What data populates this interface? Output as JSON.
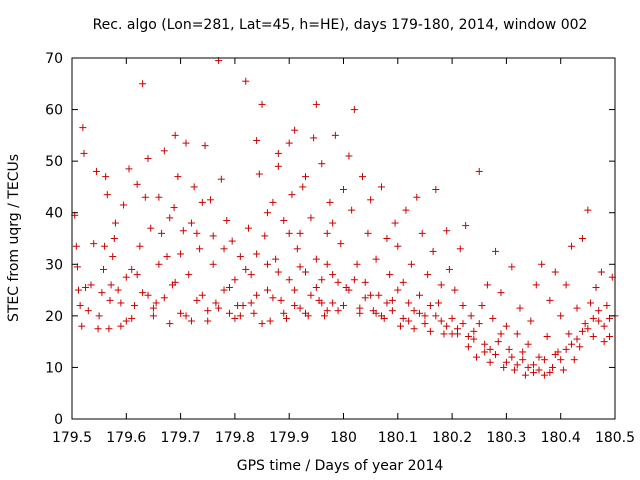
{
  "chart_data": {
    "type": "scatter",
    "title": "Rec. algo (Lon=281, Lat=45, h=HE), days 179-180, 2014, window 002",
    "xlabel": "GPS time / Days of year 2014",
    "ylabel": "STEC from uqrg / TECUs",
    "xlim": [
      179.5,
      180.5
    ],
    "ylim": [
      0,
      70
    ],
    "xticks": [
      179.5,
      179.6,
      179.7,
      179.8,
      179.9,
      180,
      180.1,
      180.2,
      180.3,
      180.4,
      180.5
    ],
    "xtick_labels": [
      "179.5",
      "179.6",
      "179.7",
      "179.8",
      "179.9",
      "180",
      "180.1",
      "180.2",
      "180.3",
      "180.4",
      "180.5"
    ],
    "yticks": [
      0,
      10,
      20,
      30,
      40,
      50,
      60,
      70
    ],
    "ytick_labels": [
      "0",
      "10",
      "20",
      "30",
      "40",
      "50",
      "60",
      "70"
    ],
    "marker": "+",
    "marker_color": "#cc0000",
    "grid": false,
    "points": [
      [
        179.505,
        39.5
      ],
      [
        179.508,
        33.5
      ],
      [
        179.51,
        29.5
      ],
      [
        179.512,
        25.0
      ],
      [
        179.515,
        22.0
      ],
      [
        179.518,
        18.0
      ],
      [
        179.52,
        56.5
      ],
      [
        179.522,
        51.5
      ],
      [
        179.525,
        25.5
      ],
      [
        179.53,
        21.0
      ],
      [
        179.535,
        26.0
      ],
      [
        179.54,
        34.0
      ],
      [
        179.545,
        48.0
      ],
      [
        179.548,
        17.5
      ],
      [
        179.555,
        24.5
      ],
      [
        179.558,
        29.0
      ],
      [
        179.56,
        33.5
      ],
      [
        179.562,
        47.0
      ],
      [
        179.565,
        43.5
      ],
      [
        179.568,
        17.5
      ],
      [
        179.572,
        26.0
      ],
      [
        179.575,
        31.5
      ],
      [
        179.578,
        35.0
      ],
      [
        179.58,
        38.0
      ],
      [
        179.585,
        25.0
      ],
      [
        179.59,
        18.0
      ],
      [
        179.595,
        41.5
      ],
      [
        179.6,
        19.0
      ],
      [
        179.605,
        48.5
      ],
      [
        179.61,
        29.0
      ],
      [
        179.615,
        22.0
      ],
      [
        179.62,
        28.0
      ],
      [
        179.625,
        33.5
      ],
      [
        179.63,
        65.0
      ],
      [
        179.635,
        43.0
      ],
      [
        179.64,
        24.0
      ],
      [
        179.645,
        37.0
      ],
      [
        179.65,
        20.0
      ],
      [
        179.655,
        22.5
      ],
      [
        179.66,
        30.0
      ],
      [
        179.665,
        36.0
      ],
      [
        179.67,
        52.0
      ],
      [
        179.675,
        31.5
      ],
      [
        179.68,
        18.5
      ],
      [
        179.685,
        26.0
      ],
      [
        179.688,
        41.0
      ],
      [
        179.69,
        55.0
      ],
      [
        179.695,
        47.0
      ],
      [
        179.7,
        20.5
      ],
      [
        179.705,
        36.5
      ],
      [
        179.71,
        53.5
      ],
      [
        179.715,
        28.0
      ],
      [
        179.72,
        19.0
      ],
      [
        179.725,
        45.0
      ],
      [
        179.73,
        36.0
      ],
      [
        179.735,
        33.0
      ],
      [
        179.74,
        24.0
      ],
      [
        179.745,
        53.0
      ],
      [
        179.75,
        21.0
      ],
      [
        179.755,
        42.5
      ],
      [
        179.76,
        30.0
      ],
      [
        179.765,
        22.5
      ],
      [
        179.77,
        69.5
      ],
      [
        179.775,
        46.5
      ],
      [
        179.78,
        25.0
      ],
      [
        179.785,
        38.5
      ],
      [
        179.79,
        20.5
      ],
      [
        179.795,
        34.5
      ],
      [
        179.8,
        27.0
      ],
      [
        179.805,
        22.0
      ],
      [
        179.81,
        31.5
      ],
      [
        179.815,
        22.0
      ],
      [
        179.82,
        65.5
      ],
      [
        179.825,
        37.0
      ],
      [
        179.83,
        28.0
      ],
      [
        179.835,
        20.5
      ],
      [
        179.84,
        54.0
      ],
      [
        179.845,
        47.5
      ],
      [
        179.85,
        61.0
      ],
      [
        179.855,
        35.5
      ],
      [
        179.86,
        25.0
      ],
      [
        179.865,
        19.0
      ],
      [
        179.87,
        42.0
      ],
      [
        179.875,
        31.0
      ],
      [
        179.88,
        51.5
      ],
      [
        179.885,
        23.0
      ],
      [
        179.89,
        38.5
      ],
      [
        179.895,
        19.5
      ],
      [
        179.9,
        27.0
      ],
      [
        179.905,
        43.5
      ],
      [
        179.91,
        56.0
      ],
      [
        179.915,
        33.0
      ],
      [
        179.92,
        21.5
      ],
      [
        179.925,
        45.0
      ],
      [
        179.93,
        28.5
      ],
      [
        179.935,
        20.0
      ],
      [
        179.94,
        39.0
      ],
      [
        179.945,
        54.5
      ],
      [
        179.95,
        31.0
      ],
      [
        179.955,
        23.0
      ],
      [
        179.96,
        49.5
      ],
      [
        179.965,
        20.0
      ],
      [
        179.97,
        36.0
      ],
      [
        179.975,
        42.0
      ],
      [
        179.98,
        28.0
      ],
      [
        179.985,
        55.0
      ],
      [
        179.99,
        21.0
      ],
      [
        179.995,
        34.0
      ],
      [
        180.0,
        44.5
      ],
      [
        179.95,
        61.0
      ],
      [
        179.9,
        53.5
      ],
      [
        179.88,
        49.0
      ],
      [
        179.86,
        30.0
      ],
      [
        179.84,
        24.0
      ],
      [
        179.98,
        38.0
      ],
      [
        179.97,
        30.0
      ],
      [
        179.96,
        22.5
      ],
      [
        179.93,
        47.0
      ],
      [
        179.92,
        36.0
      ],
      [
        179.91,
        25.0
      ],
      [
        180.005,
        25.5
      ],
      [
        180.01,
        51.0
      ],
      [
        180.015,
        40.5
      ],
      [
        180.02,
        60.0
      ],
      [
        180.025,
        30.0
      ],
      [
        180.03,
        20.5
      ],
      [
        180.035,
        47.0
      ],
      [
        180.04,
        26.5
      ],
      [
        180.045,
        36.0
      ],
      [
        180.05,
        42.5
      ],
      [
        180.055,
        21.0
      ],
      [
        180.06,
        31.0
      ],
      [
        180.065,
        24.0
      ],
      [
        180.07,
        45.0
      ],
      [
        180.075,
        19.5
      ],
      [
        180.08,
        35.0
      ],
      [
        180.085,
        28.0
      ],
      [
        180.09,
        21.0
      ],
      [
        180.095,
        38.0
      ],
      [
        180.1,
        33.5
      ],
      [
        180.105,
        18.0
      ],
      [
        180.11,
        26.5
      ],
      [
        180.115,
        40.5
      ],
      [
        180.12,
        22.5
      ],
      [
        180.125,
        30.0
      ],
      [
        180.13,
        17.5
      ],
      [
        180.135,
        43.0
      ],
      [
        180.14,
        24.0
      ],
      [
        180.145,
        36.0
      ],
      [
        180.15,
        20.0
      ],
      [
        180.155,
        28.0
      ],
      [
        180.16,
        17.0
      ],
      [
        180.165,
        32.5
      ],
      [
        180.17,
        44.5
      ],
      [
        180.175,
        22.5
      ],
      [
        180.18,
        26.0
      ],
      [
        180.185,
        16.5
      ],
      [
        180.19,
        36.5
      ],
      [
        180.195,
        29.0
      ],
      [
        180.2,
        19.5
      ],
      [
        180.205,
        25.0
      ],
      [
        180.21,
        16.5
      ],
      [
        180.215,
        33.0
      ],
      [
        180.22,
        22.0
      ],
      [
        180.225,
        37.5
      ],
      [
        180.23,
        14.0
      ],
      [
        180.235,
        20.0
      ],
      [
        180.24,
        17.0
      ],
      [
        180.245,
        12.0
      ],
      [
        180.25,
        48.0
      ],
      [
        180.255,
        22.0
      ],
      [
        180.26,
        14.5
      ],
      [
        180.265,
        26.0
      ],
      [
        180.27,
        11.0
      ],
      [
        180.275,
        19.5
      ],
      [
        180.28,
        32.5
      ],
      [
        180.285,
        15.0
      ],
      [
        180.29,
        24.5
      ],
      [
        180.295,
        10.0
      ],
      [
        180.3,
        18.0
      ],
      [
        180.305,
        13.5
      ],
      [
        180.31,
        29.5
      ],
      [
        180.315,
        9.5
      ],
      [
        180.32,
        16.5
      ],
      [
        180.325,
        21.5
      ],
      [
        180.33,
        11.5
      ],
      [
        180.335,
        8.5
      ],
      [
        180.34,
        14.5
      ],
      [
        180.345,
        19.0
      ],
      [
        180.35,
        9.0
      ],
      [
        180.355,
        26.0
      ],
      [
        180.36,
        12.0
      ],
      [
        180.365,
        30.0
      ],
      [
        180.37,
        8.5
      ],
      [
        180.375,
        16.0
      ],
      [
        180.38,
        23.0
      ],
      [
        180.385,
        10.0
      ],
      [
        180.39,
        28.5
      ],
      [
        180.395,
        13.0
      ],
      [
        180.4,
        20.0
      ],
      [
        180.405,
        9.5
      ],
      [
        180.41,
        26.0
      ],
      [
        180.415,
        16.5
      ],
      [
        180.42,
        33.5
      ],
      [
        180.425,
        11.5
      ],
      [
        180.43,
        21.5
      ],
      [
        180.435,
        14.0
      ],
      [
        180.44,
        35.0
      ],
      [
        180.445,
        18.5
      ],
      [
        180.45,
        40.5
      ],
      [
        180.455,
        22.5
      ],
      [
        180.46,
        16.0
      ],
      [
        180.465,
        25.5
      ],
      [
        180.47,
        19.0
      ],
      [
        180.475,
        28.5
      ],
      [
        180.48,
        15.0
      ],
      [
        180.485,
        22.0
      ],
      [
        180.49,
        19.5
      ],
      [
        180.495,
        27.5
      ],
      [
        180.5,
        20.0
      ],
      [
        179.6,
        27.5
      ],
      [
        179.62,
        45.5
      ],
      [
        179.64,
        50.5
      ],
      [
        179.66,
        43.0
      ],
      [
        179.68,
        39.0
      ],
      [
        179.7,
        32.0
      ],
      [
        179.72,
        38.0
      ],
      [
        179.74,
        42.0
      ],
      [
        179.76,
        35.5
      ],
      [
        179.78,
        33.0
      ],
      [
        179.8,
        19.5
      ],
      [
        179.82,
        29.0
      ],
      [
        179.84,
        32.0
      ],
      [
        179.86,
        40.0
      ],
      [
        179.88,
        28.5
      ],
      [
        179.9,
        36.0
      ],
      [
        179.92,
        29.5
      ],
      [
        179.94,
        24.0
      ],
      [
        179.96,
        27.0
      ],
      [
        179.98,
        22.5
      ],
      [
        180.0,
        22.0
      ],
      [
        180.02,
        27.0
      ],
      [
        180.04,
        23.5
      ],
      [
        180.06,
        20.5
      ],
      [
        180.08,
        22.5
      ],
      [
        180.1,
        25.0
      ],
      [
        180.12,
        19.0
      ],
      [
        180.14,
        20.5
      ],
      [
        180.16,
        22.0
      ],
      [
        180.18,
        19.0
      ],
      [
        180.2,
        16.5
      ],
      [
        180.22,
        18.5
      ],
      [
        180.24,
        15.5
      ],
      [
        180.26,
        13.0
      ],
      [
        180.28,
        12.5
      ],
      [
        180.3,
        11.0
      ],
      [
        180.32,
        10.5
      ],
      [
        180.34,
        10.0
      ],
      [
        180.36,
        9.5
      ],
      [
        180.38,
        9.0
      ],
      [
        180.4,
        11.5
      ],
      [
        180.42,
        14.5
      ],
      [
        180.44,
        17.0
      ],
      [
        180.46,
        19.5
      ],
      [
        180.48,
        18.0
      ],
      [
        179.55,
        20.0
      ],
      [
        179.57,
        23.0
      ],
      [
        179.59,
        22.5
      ],
      [
        179.61,
        19.5
      ],
      [
        179.63,
        24.5
      ],
      [
        179.65,
        21.5
      ],
      [
        179.67,
        23.5
      ],
      [
        179.69,
        26.5
      ],
      [
        179.71,
        20.0
      ],
      [
        179.73,
        23.0
      ],
      [
        179.75,
        19.0
      ],
      [
        179.77,
        21.5
      ],
      [
        179.79,
        25.5
      ],
      [
        179.81,
        20.0
      ],
      [
        179.83,
        22.5
      ],
      [
        179.85,
        18.5
      ],
      [
        179.87,
        23.5
      ],
      [
        179.89,
        20.5
      ],
      [
        179.91,
        22.0
      ],
      [
        179.93,
        20.5
      ],
      [
        179.95,
        25.5
      ],
      [
        179.97,
        21.0
      ],
      [
        179.99,
        26.5
      ],
      [
        180.01,
        25.0
      ],
      [
        180.03,
        21.5
      ],
      [
        180.05,
        24.0
      ],
      [
        180.07,
        20.0
      ],
      [
        180.09,
        23.0
      ],
      [
        180.11,
        19.5
      ],
      [
        180.13,
        21.0
      ],
      [
        180.15,
        18.5
      ],
      [
        180.17,
        20.0
      ],
      [
        180.19,
        18.0
      ],
      [
        180.21,
        17.5
      ],
      [
        180.23,
        16.0
      ],
      [
        180.25,
        18.5
      ],
      [
        180.27,
        13.5
      ],
      [
        180.29,
        16.5
      ],
      [
        180.31,
        12.0
      ],
      [
        180.33,
        13.0
      ],
      [
        180.35,
        10.5
      ],
      [
        180.37,
        11.5
      ],
      [
        180.39,
        12.5
      ],
      [
        180.41,
        13.5
      ],
      [
        180.43,
        15.5
      ],
      [
        180.45,
        17.5
      ],
      [
        180.47,
        21.0
      ],
      [
        180.49,
        16.0
      ]
    ]
  }
}
